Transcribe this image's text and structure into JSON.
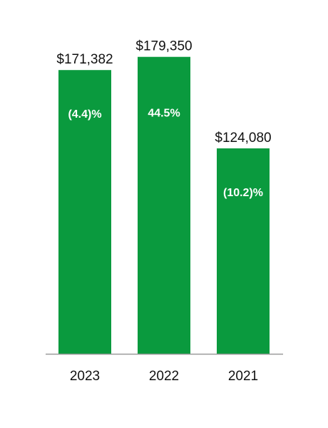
{
  "chart_data": {
    "type": "bar",
    "categories": [
      "2023",
      "2022",
      "2021"
    ],
    "values": [
      171382,
      179350,
      124080
    ],
    "value_labels": [
      "$171,382",
      "$179,350",
      "$124,080"
    ],
    "change_labels": [
      "(4.4)%",
      "44.5%",
      "(10.2)%"
    ],
    "title": "",
    "xlabel": "",
    "ylabel": "",
    "ylim": [
      0,
      190000
    ],
    "grid": false,
    "legend": "none",
    "colors": {
      "bar": "#0a9a3e",
      "axis": "#999999",
      "value_text": "#111111",
      "change_text": "#ffffff"
    }
  }
}
